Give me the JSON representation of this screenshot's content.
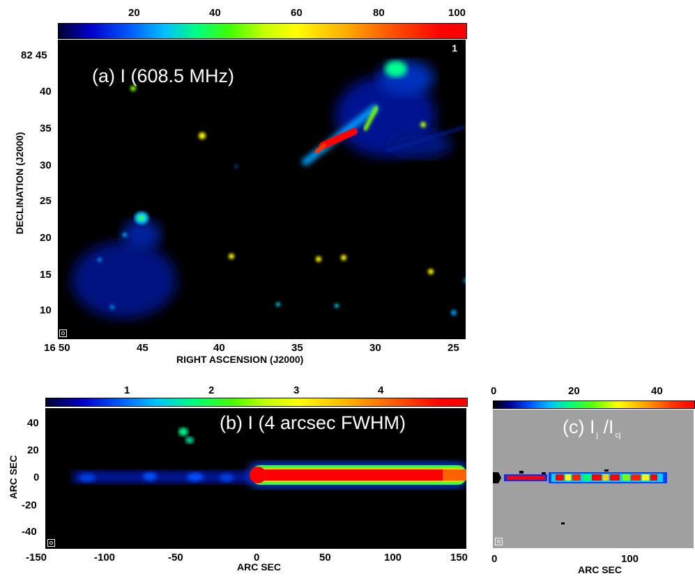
{
  "panels": {
    "a": {
      "label": "(a) I (608.5 MHz)",
      "corner_marker": "1",
      "colorbar_ticks": [
        "20",
        "40",
        "60",
        "80",
        "100"
      ],
      "colorbar_range": [
        0,
        100
      ],
      "xlabel": "RIGHT ASCENSION (J2000)",
      "ylabel": "DECLINATION (J2000)",
      "x_ticks": [
        "16 50",
        "45",
        "40",
        "35",
        "30",
        "25"
      ],
      "y_ticks": [
        "82 45",
        "40",
        "35",
        "30",
        "25",
        "20",
        "15",
        "10"
      ]
    },
    "b": {
      "label": "(b) I (4 arcsec FWHM)",
      "colorbar_ticks": [
        "1",
        "2",
        "3",
        "4"
      ],
      "xlabel": "ARC SEC",
      "ylabel": "ARC SEC",
      "x_ticks": [
        "-150",
        "-100",
        "-50",
        "0",
        "50",
        "100",
        "150"
      ],
      "y_ticks": [
        "40",
        "20",
        "0",
        "-20",
        "-40"
      ]
    },
    "c": {
      "label_main": "(c) I",
      "label_sub1": "j",
      "label_mid": " /I",
      "label_sub2": "cj",
      "colorbar_ticks": [
        "0",
        "20",
        "40"
      ],
      "xlabel": "ARC SEC",
      "x_ticks": [
        "0",
        "100"
      ]
    }
  },
  "colors": {
    "colormap": [
      "#000000",
      "#0000cc",
      "#0066ff",
      "#00ccff",
      "#00ff66",
      "#66ff00",
      "#ffff00",
      "#ffaa00",
      "#ff4400",
      "#ff0000"
    ],
    "mask_gray": "#a0a0a0"
  }
}
